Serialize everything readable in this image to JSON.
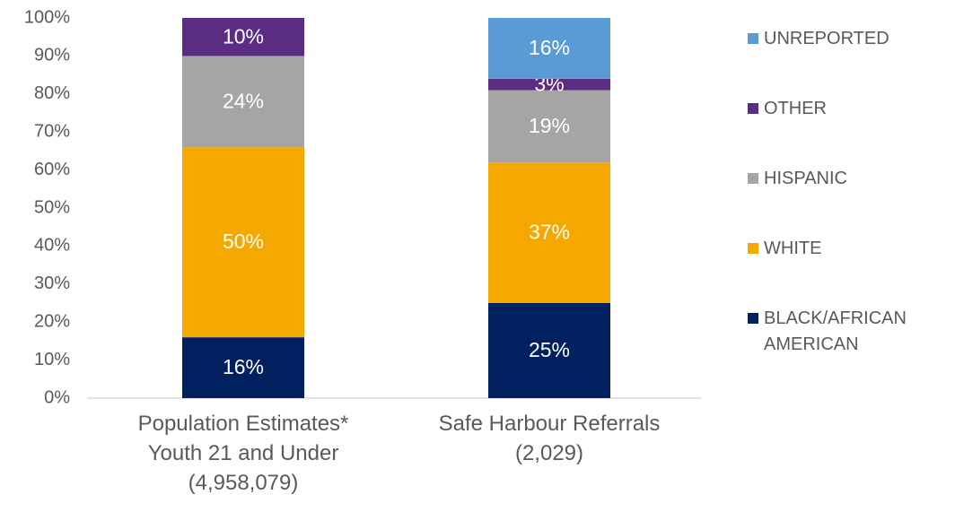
{
  "chart_data": {
    "type": "stacked_bar",
    "categories": [
      "Population Estimates*\nYouth 21 and Under\n(4,958,079)",
      "Safe Harbour Referrals\n(2,029)"
    ],
    "series": [
      {
        "name": "BLACK/AFRICAN\nAMERICAN",
        "color": "#002060",
        "values": [
          16,
          25
        ],
        "value_labels": [
          "16%",
          "25%"
        ]
      },
      {
        "name": "WHITE",
        "color": "#f5a800",
        "values": [
          50,
          37
        ],
        "value_labels": [
          "50%",
          "37%"
        ]
      },
      {
        "name": "HISPANIC",
        "color": "#a5a5a5",
        "values": [
          24,
          19
        ],
        "value_labels": [
          "24%",
          "19%"
        ]
      },
      {
        "name": "OTHER",
        "color": "#5b2d82",
        "values": [
          10,
          3
        ],
        "value_labels": [
          "10%",
          "3%"
        ]
      },
      {
        "name": "UNREPORTED",
        "color": "#5b9bd5",
        "values": [
          null,
          16
        ],
        "value_labels": [
          null,
          "16%"
        ]
      }
    ],
    "ylim": [
      0,
      100
    ],
    "yticks": [
      {
        "value": 0,
        "label": "0%"
      },
      {
        "value": 10,
        "label": "10%"
      },
      {
        "value": 20,
        "label": "20%"
      },
      {
        "value": 30,
        "label": "30%"
      },
      {
        "value": 40,
        "label": "40%"
      },
      {
        "value": 50,
        "label": "50%"
      },
      {
        "value": 60,
        "label": "60%"
      },
      {
        "value": 70,
        "label": "70%"
      },
      {
        "value": 80,
        "label": "80%"
      },
      {
        "value": 90,
        "label": "90%"
      },
      {
        "value": 100,
        "label": "100%"
      }
    ],
    "grid": false,
    "legend": "right"
  }
}
